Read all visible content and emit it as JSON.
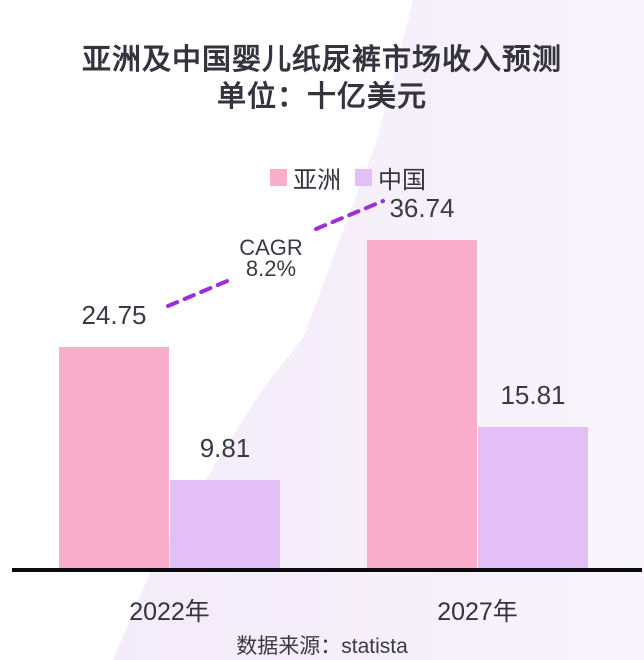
{
  "title": {
    "line1": "亚洲及中国婴儿纸尿裤市场收入预测",
    "line2": "单位：十亿美元"
  },
  "annotation": {
    "line1": "CAGR",
    "line2": "8.2%"
  },
  "source_text": "数据来源：statista",
  "colors": {
    "asia_bar": "#FBAECB",
    "china_bar": "#E2C0F6",
    "dash_line": "#9B2FD9",
    "axis": "#0b0b0b",
    "text_dark": "#34343E",
    "bg_band_left": "#F3EBF9",
    "bg_band_right": "#F9F5FC"
  },
  "chart_data": {
    "type": "bar",
    "title": "亚洲及中国婴儿纸尿裤市场收入预测",
    "subtitle": "单位：十亿美元",
    "ylabel": "十亿美元",
    "categories": [
      "2022年",
      "2027年"
    ],
    "series": [
      {
        "name": "亚洲",
        "color": "#FBAECB",
        "values": [
          24.75,
          36.74
        ]
      },
      {
        "name": "中国",
        "color": "#E2C0F6",
        "values": [
          9.81,
          15.81
        ]
      }
    ],
    "annotation": "CAGR 8.2%",
    "ylim": [
      0,
      40
    ],
    "grid": false,
    "legend_position": "top",
    "value_labels_shown": true
  }
}
